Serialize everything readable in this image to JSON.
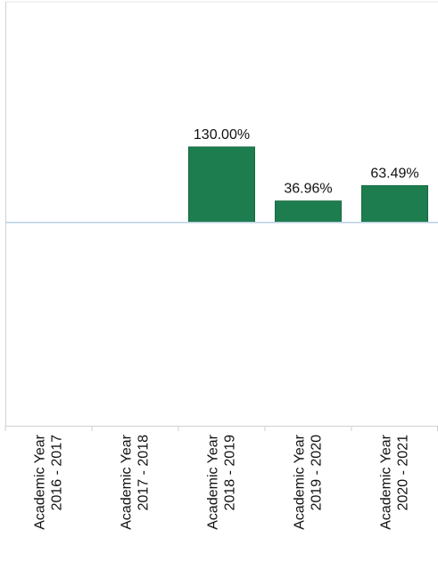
{
  "chart_data": {
    "type": "bar",
    "categories": [
      [
        "Academic Year",
        "2016 - 2017"
      ],
      [
        "Academic Year",
        "2017 - 2018"
      ],
      [
        "Academic Year",
        "2018 - 2019"
      ],
      [
        "Academic Year",
        "2019 - 2020"
      ],
      [
        "Academic Year",
        "2020 - 2021"
      ]
    ],
    "values": [
      null,
      null,
      130.0,
      36.96,
      63.49
    ],
    "value_labels": [
      "",
      "",
      "130.00%",
      "36.96%",
      "63.49%"
    ],
    "value_unit": "%",
    "title": "",
    "xlabel": "",
    "ylabel": "",
    "ylim": [
      -350,
      380
    ],
    "grid": false,
    "legend": "none",
    "colors": {
      "bar": "#1e7d4f",
      "bar_edge": "#166a41",
      "zero_line": "#b7cfe3",
      "axis": "#d2d2d2"
    }
  }
}
